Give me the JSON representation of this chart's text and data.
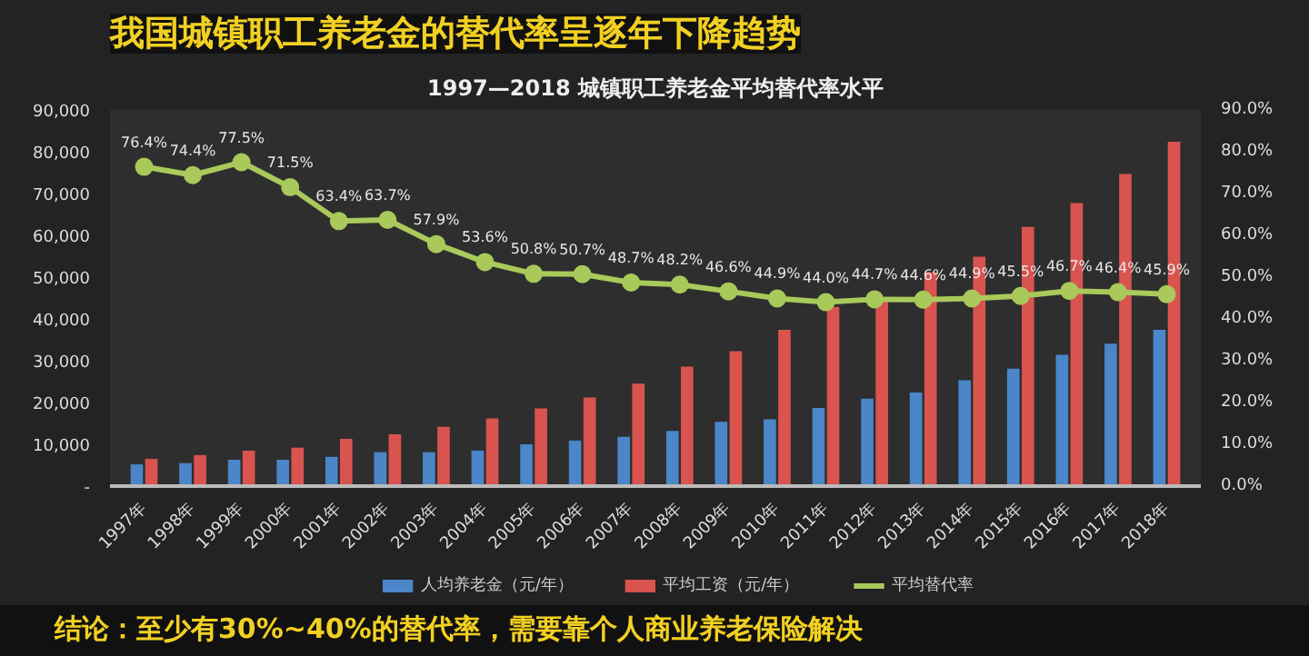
{
  "chart_data": {
    "type": "bar",
    "title": "我国城镇职工养老金的替代率呈逐年下降趋势",
    "subtitle": "1997—2018 城镇职工养老金平均替代率水平",
    "annotations": [
      "结论：至少有30%~40%的替代率，需要靠个人商业养老保险解决"
    ],
    "categories": [
      "1997年",
      "1998年",
      "1999年",
      "2000年",
      "2001年",
      "2002年",
      "2003年",
      "2004年",
      "2005年",
      "2006年",
      "2007年",
      "2008年",
      "2009年",
      "2010年",
      "2011年",
      "2012年",
      "2013年",
      "2014年",
      "2015年",
      "2016年",
      "2017年",
      "2018年"
    ],
    "series": [
      {
        "name": "人均养老金（元/年）",
        "color": "#4a86c8",
        "values": [
          5200,
          5500,
          6300,
          6300,
          7000,
          8100,
          8100,
          8500,
          10000,
          10900,
          11800,
          13200,
          15400,
          16000,
          18700,
          20900,
          22400,
          25300,
          28100,
          31400,
          34100,
          37400
        ]
      },
      {
        "name": "平均工资（元/年）",
        "color": "#d9534f",
        "values": [
          6500,
          7400,
          8500,
          9200,
          11300,
          12400,
          14200,
          16200,
          18600,
          21200,
          24500,
          28600,
          32300,
          37400,
          42900,
          45000,
          51200,
          54900,
          62000,
          67700,
          74700,
          82400
        ]
      },
      {
        "name": "平均替代率",
        "type": "line",
        "axis": "y2",
        "color": "#a9c95a",
        "marker": "circle",
        "values": [
          76.4,
          74.4,
          77.5,
          71.5,
          63.4,
          63.7,
          57.9,
          53.6,
          50.8,
          50.7,
          48.7,
          48.2,
          46.6,
          44.9,
          44.0,
          44.7,
          44.6,
          44.9,
          45.5,
          46.7,
          46.4,
          45.9
        ],
        "value_labels": [
          "76.4%",
          "74.4%",
          "77.5%",
          "71.5%",
          "63.4%",
          "63.7%",
          "57.9%",
          "53.6%",
          "50.8%",
          "50.7%",
          "48.7%",
          "48.2%",
          "46.6%",
          "44.9%",
          "44.0%",
          "44.7%",
          "44.6%",
          "44.9%",
          "45.5%",
          "46.7%",
          "46.4%",
          "45.9%"
        ]
      }
    ],
    "ylim": [
      0,
      90000
    ],
    "yticks": [
      {
        "value": 0,
        "label": "-"
      },
      {
        "value": 10000,
        "label": "10,000"
      },
      {
        "value": 20000,
        "label": "20,000"
      },
      {
        "value": 30000,
        "label": "30,000"
      },
      {
        "value": 40000,
        "label": "40,000"
      },
      {
        "value": 50000,
        "label": "50,000"
      },
      {
        "value": 60000,
        "label": "60,000"
      },
      {
        "value": 70000,
        "label": "70,000"
      },
      {
        "value": 80000,
        "label": "80,000"
      },
      {
        "value": 90000,
        "label": "90,000"
      }
    ],
    "y2lim": [
      0,
      90
    ],
    "y2ticks": [
      {
        "value": 0,
        "label": "0.0%"
      },
      {
        "value": 10,
        "label": "10.0%"
      },
      {
        "value": 20,
        "label": "20.0%"
      },
      {
        "value": 30,
        "label": "30.0%"
      },
      {
        "value": 40,
        "label": "40.0%"
      },
      {
        "value": 50,
        "label": "50.0%"
      },
      {
        "value": 60,
        "label": "60.0%"
      },
      {
        "value": 70,
        "label": "70.0%"
      },
      {
        "value": 80,
        "label": "80.0%"
      },
      {
        "value": 90,
        "label": "90.0%"
      }
    ],
    "grid": false,
    "legend": "bottom"
  }
}
